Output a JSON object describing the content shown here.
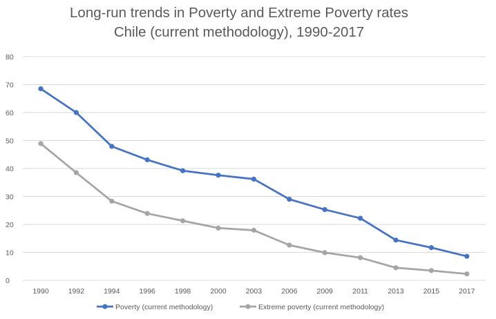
{
  "chart_data": {
    "type": "line",
    "title": "Long-run trends in Poverty and Extreme Poverty rates",
    "subtitle": "Chile (current methodology), 1990-2017",
    "xlabel": "",
    "ylabel": "",
    "categories": [
      "1990",
      "1992",
      "1994",
      "1996",
      "1998",
      "2000",
      "2003",
      "2006",
      "2009",
      "2011",
      "2013",
      "2015",
      "2017"
    ],
    "ylim": [
      0,
      80
    ],
    "yticks": [
      "0",
      "10",
      "20",
      "30",
      "40",
      "50",
      "60",
      "70",
      "80"
    ],
    "grid": true,
    "legend_position": "bottom",
    "series": [
      {
        "name": "Poverty (current methodology)",
        "color": "#4472C4",
        "values": [
          68.5,
          60.0,
          47.9,
          43.1,
          39.2,
          37.6,
          36.2,
          29.0,
          25.3,
          22.2,
          14.4,
          11.7,
          8.6
        ]
      },
      {
        "name": "Extreme poverty (current methodology)",
        "color": "#A5A5A5",
        "values": [
          48.9,
          38.5,
          28.3,
          23.9,
          21.3,
          18.7,
          17.9,
          12.6,
          9.9,
          8.1,
          4.5,
          3.5,
          2.3
        ]
      }
    ]
  }
}
